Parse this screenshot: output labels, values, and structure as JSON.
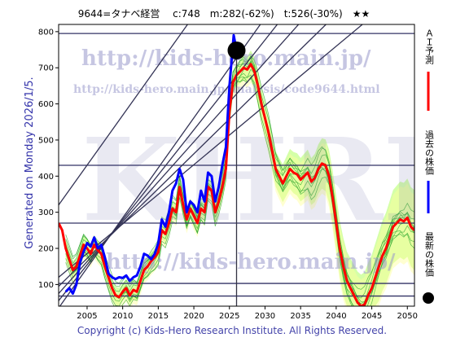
{
  "header": {
    "title": "9644=タナベ経営 　c:748　m:282(-62%)　t:526(-30%)　★★"
  },
  "left_label": "Generated on Monday 2026/1/5.",
  "footer": "Copyright (c) Kids-Hero Research Institute. All Rights Reserved.",
  "watermarks": {
    "url1": "http://kids-hero.main.jp/",
    "url2": "http://kids-hero.main.jp/analysis/code9644.html",
    "url3": "http://kids-hero.main.jp/",
    "big": "KHRI"
  },
  "legend": {
    "ai": "ＡＩ予測",
    "past": "過去の株価",
    "latest": "最新の株価",
    "colors": {
      "ai": "#ff0000",
      "past": "#0000ff",
      "latest": "#000000"
    }
  },
  "chart_data": {
    "type": "line",
    "title": "9644=タナベ経営 　c:748　m:282(-62%)　t:526(-30%)　★★",
    "xlim": [
      2001,
      2051
    ],
    "ylim": [
      40,
      820
    ],
    "x_ticks": [
      2005,
      2010,
      2015,
      2020,
      2025,
      2030,
      2035,
      2040,
      2045,
      2050
    ],
    "y_ticks": [
      100,
      200,
      300,
      400,
      500,
      600,
      700,
      800
    ],
    "grid": false,
    "current": {
      "x": 2026.0,
      "y": 748
    },
    "horizontal_lines": [
      68,
      103,
      270,
      430,
      795
    ],
    "vertical_line_x": 2026.0,
    "trend_lines": [
      {
        "x0": 2001,
        "y0": 35,
        "x1": 2051,
        "y1": 1420
      },
      {
        "x0": 2001,
        "y0": 55,
        "x1": 2051,
        "y1": 1300
      },
      {
        "x0": 2001,
        "y0": 75,
        "x1": 2051,
        "y1": 1180
      },
      {
        "x0": 2001,
        "y0": 95,
        "x1": 2051,
        "y1": 1060
      },
      {
        "x0": 2001,
        "y0": 120,
        "x1": 2051,
        "y1": 940
      },
      {
        "x0": 2001,
        "y0": 320,
        "x1": 2051,
        "y1": 1700
      }
    ],
    "series": [
      {
        "name": "過去の株価",
        "color": "#0000ff",
        "points": [
          [
            2002.0,
            80
          ],
          [
            2002.5,
            90
          ],
          [
            2003.0,
            75
          ],
          [
            2003.5,
            100
          ],
          [
            2004.0,
            160
          ],
          [
            2004.5,
            190
          ],
          [
            2005.0,
            215
          ],
          [
            2005.5,
            205
          ],
          [
            2006.0,
            230
          ],
          [
            2006.5,
            200
          ],
          [
            2007.0,
            210
          ],
          [
            2007.5,
            175
          ],
          [
            2008.0,
            130
          ],
          [
            2008.5,
            120
          ],
          [
            2009.0,
            115
          ],
          [
            2009.5,
            120
          ],
          [
            2010.0,
            118
          ],
          [
            2010.5,
            125
          ],
          [
            2011.0,
            110
          ],
          [
            2011.5,
            120
          ],
          [
            2012.0,
            125
          ],
          [
            2012.5,
            150
          ],
          [
            2013.0,
            185
          ],
          [
            2013.5,
            180
          ],
          [
            2014.0,
            170
          ],
          [
            2014.5,
            185
          ],
          [
            2015.0,
            215
          ],
          [
            2015.5,
            280
          ],
          [
            2016.0,
            260
          ],
          [
            2016.5,
            300
          ],
          [
            2017.0,
            360
          ],
          [
            2017.5,
            380
          ],
          [
            2018.0,
            420
          ],
          [
            2018.5,
            390
          ],
          [
            2019.0,
            300
          ],
          [
            2019.5,
            330
          ],
          [
            2020.0,
            320
          ],
          [
            2020.5,
            300
          ],
          [
            2021.0,
            360
          ],
          [
            2021.5,
            330
          ],
          [
            2022.0,
            410
          ],
          [
            2022.5,
            400
          ],
          [
            2023.0,
            330
          ],
          [
            2023.5,
            370
          ],
          [
            2024.0,
            430
          ],
          [
            2024.5,
            480
          ],
          [
            2025.0,
            650
          ],
          [
            2025.3,
            720
          ],
          [
            2025.6,
            790
          ],
          [
            2026.0,
            748
          ]
        ]
      },
      {
        "name": "ＡＩ予測",
        "color": "#ff0000",
        "points": [
          [
            2001.0,
            270
          ],
          [
            2001.5,
            250
          ],
          [
            2002.0,
            200
          ],
          [
            2002.5,
            170
          ],
          [
            2003.0,
            140
          ],
          [
            2003.5,
            150
          ],
          [
            2004.0,
            180
          ],
          [
            2004.5,
            210
          ],
          [
            2005.0,
            200
          ],
          [
            2005.5,
            185
          ],
          [
            2006.0,
            210
          ],
          [
            2006.5,
            195
          ],
          [
            2007.0,
            185
          ],
          [
            2007.5,
            150
          ],
          [
            2008.0,
            120
          ],
          [
            2008.5,
            90
          ],
          [
            2009.0,
            70
          ],
          [
            2009.5,
            65
          ],
          [
            2010.0,
            80
          ],
          [
            2010.5,
            90
          ],
          [
            2011.0,
            70
          ],
          [
            2011.5,
            85
          ],
          [
            2012.0,
            80
          ],
          [
            2012.5,
            110
          ],
          [
            2013.0,
            140
          ],
          [
            2013.5,
            150
          ],
          [
            2014.0,
            165
          ],
          [
            2014.5,
            175
          ],
          [
            2015.0,
            190
          ],
          [
            2015.5,
            250
          ],
          [
            2016.0,
            240
          ],
          [
            2016.5,
            270
          ],
          [
            2017.0,
            310
          ],
          [
            2017.5,
            300
          ],
          [
            2018.0,
            370
          ],
          [
            2018.5,
            320
          ],
          [
            2019.0,
            280
          ],
          [
            2019.5,
            310
          ],
          [
            2020.0,
            290
          ],
          [
            2020.5,
            270
          ],
          [
            2021.0,
            310
          ],
          [
            2021.5,
            300
          ],
          [
            2022.0,
            370
          ],
          [
            2022.5,
            360
          ],
          [
            2023.0,
            300
          ],
          [
            2023.5,
            330
          ],
          [
            2024.0,
            370
          ],
          [
            2024.5,
            420
          ],
          [
            2025.0,
            580
          ],
          [
            2025.5,
            660
          ],
          [
            2026.0,
            680
          ],
          [
            2026.5,
            690
          ],
          [
            2027.0,
            700
          ],
          [
            2027.5,
            695
          ],
          [
            2028.0,
            710
          ],
          [
            2028.5,
            690
          ],
          [
            2029.0,
            650
          ],
          [
            2029.5,
            600
          ],
          [
            2030.0,
            560
          ],
          [
            2030.5,
            520
          ],
          [
            2031.0,
            470
          ],
          [
            2031.5,
            420
          ],
          [
            2032.0,
            400
          ],
          [
            2032.5,
            380
          ],
          [
            2033.0,
            400
          ],
          [
            2033.5,
            420
          ],
          [
            2034.0,
            410
          ],
          [
            2034.5,
            405
          ],
          [
            2035.0,
            390
          ],
          [
            2035.5,
            400
          ],
          [
            2036.0,
            410
          ],
          [
            2036.5,
            385
          ],
          [
            2037.0,
            395
          ],
          [
            2037.5,
            420
          ],
          [
            2038.0,
            435
          ],
          [
            2038.5,
            430
          ],
          [
            2039.0,
            400
          ],
          [
            2039.5,
            340
          ],
          [
            2040.0,
            270
          ],
          [
            2040.5,
            200
          ],
          [
            2041.0,
            150
          ],
          [
            2041.5,
            110
          ],
          [
            2042.0,
            90
          ],
          [
            2042.5,
            70
          ],
          [
            2043.0,
            50
          ],
          [
            2043.5,
            40
          ],
          [
            2044.0,
            45
          ],
          [
            2044.5,
            70
          ],
          [
            2045.0,
            90
          ],
          [
            2045.5,
            120
          ],
          [
            2046.0,
            150
          ],
          [
            2046.5,
            180
          ],
          [
            2047.0,
            200
          ],
          [
            2047.5,
            230
          ],
          [
            2048.0,
            260
          ],
          [
            2048.5,
            270
          ],
          [
            2049.0,
            280
          ],
          [
            2049.5,
            275
          ],
          [
            2050.0,
            285
          ],
          [
            2050.5,
            260
          ],
          [
            2051.0,
            250
          ]
        ]
      }
    ]
  }
}
